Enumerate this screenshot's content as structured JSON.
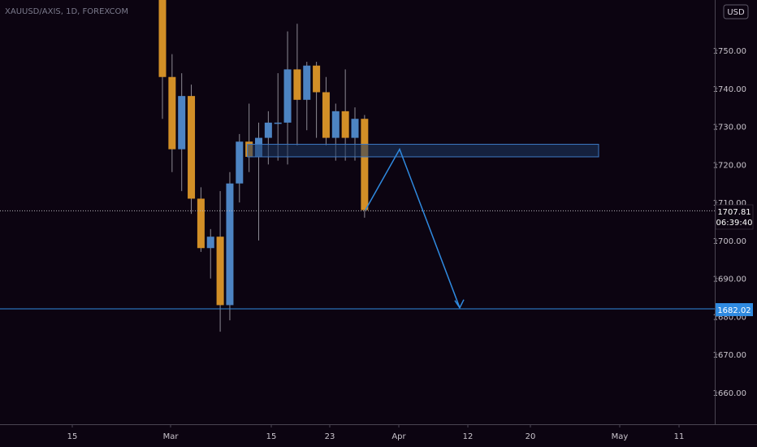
{
  "header": {
    "symbol_text": "XAUUSD/AXIS, 1D, FOREXCOM"
  },
  "currency": "USD",
  "colors": {
    "background": "#0c0411",
    "bull": "#4d84c3",
    "bear": "#d28f27",
    "wick": "#8d8a94",
    "accent": "#2f8ae0",
    "zone_fill": "#1e3a64",
    "zone_border": "#3d79c4"
  },
  "current_price": {
    "value": "1707.81",
    "countdown": "06:39:40"
  },
  "target_level": {
    "value": "1682.02"
  },
  "chart_data": {
    "type": "candlestick",
    "y_axis": {
      "ticks": [
        "1750.00",
        "1740.00",
        "1730.00",
        "1720.00",
        "1710.00",
        "1700.00",
        "1690.00",
        "1680.00",
        "1670.00",
        "1660.00"
      ],
      "ylim": [
        1654,
        1770
      ]
    },
    "x_axis": {
      "ticks": [
        "15",
        "Mar",
        "15",
        "23",
        "Apr",
        "12",
        "20",
        "May",
        "11"
      ]
    },
    "candles": [
      {
        "o": 1775,
        "h": 1780,
        "l": 1732,
        "c": 1743
      },
      {
        "o": 1743,
        "h": 1749,
        "l": 1718,
        "c": 1724
      },
      {
        "o": 1724,
        "h": 1744,
        "l": 1713,
        "c": 1738
      },
      {
        "o": 1738,
        "h": 1741,
        "l": 1707,
        "c": 1711
      },
      {
        "o": 1711,
        "h": 1714,
        "l": 1697,
        "c": 1698
      },
      {
        "o": 1698,
        "h": 1703,
        "l": 1690,
        "c": 1701
      },
      {
        "o": 1701,
        "h": 1713,
        "l": 1676,
        "c": 1683
      },
      {
        "o": 1683,
        "h": 1718,
        "l": 1679,
        "c": 1715
      },
      {
        "o": 1715,
        "h": 1728,
        "l": 1710,
        "c": 1726
      },
      {
        "o": 1726,
        "h": 1736,
        "l": 1718,
        "c": 1722
      },
      {
        "o": 1722,
        "h": 1731,
        "l": 1700,
        "c": 1727
      },
      {
        "o": 1727,
        "h": 1734,
        "l": 1720,
        "c": 1731
      },
      {
        "o": 1731,
        "h": 1744,
        "l": 1721,
        "c": 1731
      },
      {
        "o": 1731,
        "h": 1755,
        "l": 1720,
        "c": 1745
      },
      {
        "o": 1745,
        "h": 1757,
        "l": 1725,
        "c": 1737
      },
      {
        "o": 1737,
        "h": 1747,
        "l": 1729,
        "c": 1746
      },
      {
        "o": 1746,
        "h": 1747,
        "l": 1727,
        "c": 1739
      },
      {
        "o": 1739,
        "h": 1743,
        "l": 1725,
        "c": 1727
      },
      {
        "o": 1727,
        "h": 1736,
        "l": 1721,
        "c": 1734
      },
      {
        "o": 1734,
        "h": 1745,
        "l": 1721,
        "c": 1727
      },
      {
        "o": 1727,
        "h": 1735,
        "l": 1721,
        "c": 1732
      },
      {
        "o": 1732,
        "h": 1733,
        "l": 1706,
        "c": 1708
      }
    ],
    "annotations": [
      {
        "type": "zone",
        "from_candle": 9,
        "to_x": "Apr+",
        "y_top": 1725.3,
        "y_bottom": 1722.0
      },
      {
        "type": "path",
        "points": [
          [
            1708
          ],
          [
            1724
          ],
          [
            1682
          ]
        ]
      },
      {
        "type": "hline",
        "y": 1682.02
      },
      {
        "type": "hline_dotted",
        "y": 1707.81
      }
    ]
  }
}
